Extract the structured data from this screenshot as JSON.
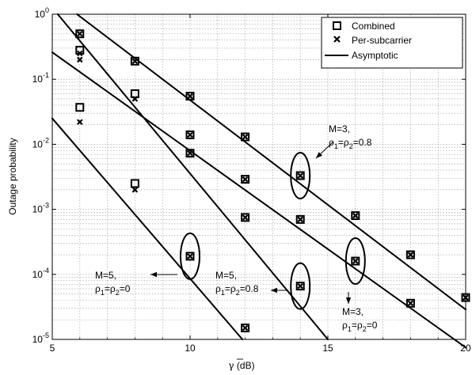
{
  "chart_data": {
    "type": "scatter",
    "ylabel": "Outage probability",
    "xlabel": "γ (dB)",
    "xlabel_overline_symbol": "γ",
    "xlabel_unit": " (dB)",
    "xlim": [
      5,
      20
    ],
    "ylim": [
      1e-05,
      1
    ],
    "yscale": "log",
    "grid": true,
    "legend_position": "top-right",
    "x_ticks": [
      5,
      10,
      15,
      20
    ],
    "y_ticks": [
      {
        "value": 1,
        "exp": "0"
      },
      {
        "value": 0.1,
        "exp": "-1"
      },
      {
        "value": 0.01,
        "exp": "-2"
      },
      {
        "value": 0.001,
        "exp": "-3"
      },
      {
        "value": 0.0001,
        "exp": "-4"
      },
      {
        "value": 1e-05,
        "exp": "-5"
      }
    ],
    "legend": [
      "Combined",
      "Per-subcarrier",
      "Asymptotic"
    ],
    "series": [
      {
        "name": "Combined",
        "marker": "square",
        "points": [
          [
            6,
            0.5
          ],
          [
            6,
            0.28
          ],
          [
            6,
            0.037
          ],
          [
            8,
            0.19
          ],
          [
            8,
            0.06
          ],
          [
            8,
            0.0025
          ],
          [
            10,
            0.055
          ],
          [
            10,
            0.014
          ],
          [
            10,
            0.0073
          ],
          [
            10,
            0.00019
          ],
          [
            12,
            0.013
          ],
          [
            12,
            0.0029
          ],
          [
            12,
            0.00075
          ],
          [
            12,
            1.5e-05
          ],
          [
            14,
            0.0033
          ],
          [
            14,
            0.0007
          ],
          [
            14,
            6.6e-05
          ],
          [
            16,
            0.0008
          ],
          [
            16,
            0.00016
          ],
          [
            18,
            0.0002
          ],
          [
            18,
            3.6e-05
          ],
          [
            20,
            4.4e-05
          ]
        ]
      },
      {
        "name": "Per-subcarrier",
        "marker": "x",
        "points": [
          [
            6,
            0.5
          ],
          [
            6,
            0.25
          ],
          [
            6,
            0.2
          ],
          [
            6,
            0.022
          ],
          [
            8,
            0.19
          ],
          [
            8,
            0.05
          ],
          [
            8,
            0.002
          ],
          [
            10,
            0.055
          ],
          [
            10,
            0.014
          ],
          [
            10,
            0.0073
          ],
          [
            10,
            0.00019
          ],
          [
            12,
            0.013
          ],
          [
            12,
            0.0029
          ],
          [
            12,
            0.00075
          ],
          [
            12,
            1.5e-05
          ],
          [
            14,
            0.0033
          ],
          [
            14,
            0.0007
          ],
          [
            14,
            6.6e-05
          ],
          [
            16,
            0.0008
          ],
          [
            16,
            0.00016
          ],
          [
            18,
            0.0002
          ],
          [
            18,
            3.6e-05
          ],
          [
            20,
            4.4e-05
          ]
        ]
      },
      {
        "name": "Asymptotic",
        "marker": "line",
        "lines": [
          [
            [
              5.9,
              1.0
            ],
            [
              20,
              2.88e-05
            ]
          ],
          [
            [
              5,
              0.26
            ],
            [
              20,
              7.5e-06
            ]
          ],
          [
            [
              5.2,
              1.0
            ],
            [
              15,
              1e-05
            ]
          ],
          [
            [
              5,
              0.025
            ],
            [
              11.9,
              1e-05
            ]
          ]
        ]
      }
    ],
    "ellipses": [
      {
        "x": 14,
        "y": 0.0033
      },
      {
        "x": 10,
        "y": 0.00019
      },
      {
        "x": 14,
        "y": 6.6e-05
      },
      {
        "x": 16,
        "y": 0.00016
      }
    ],
    "annotations": [
      {
        "l1": "M=3,",
        "rho_lhs": "ρ",
        "sub1": "1",
        "eq": "=ρ",
        "sub2": "2",
        "rhs": "=0.8"
      },
      {
        "l1": "M=5,",
        "rho_lhs": "ρ",
        "sub1": "1",
        "eq": "=ρ",
        "sub2": "2",
        "rhs": "=0"
      },
      {
        "l1": "M=5,",
        "rho_lhs": "ρ",
        "sub1": "1",
        "eq": "=ρ",
        "sub2": "2",
        "rhs": "=0.8"
      },
      {
        "l1": "M=3,",
        "rho_lhs": "ρ",
        "sub1": "1",
        "eq": "=ρ",
        "sub2": "2",
        "rhs": "=0"
      }
    ]
  }
}
